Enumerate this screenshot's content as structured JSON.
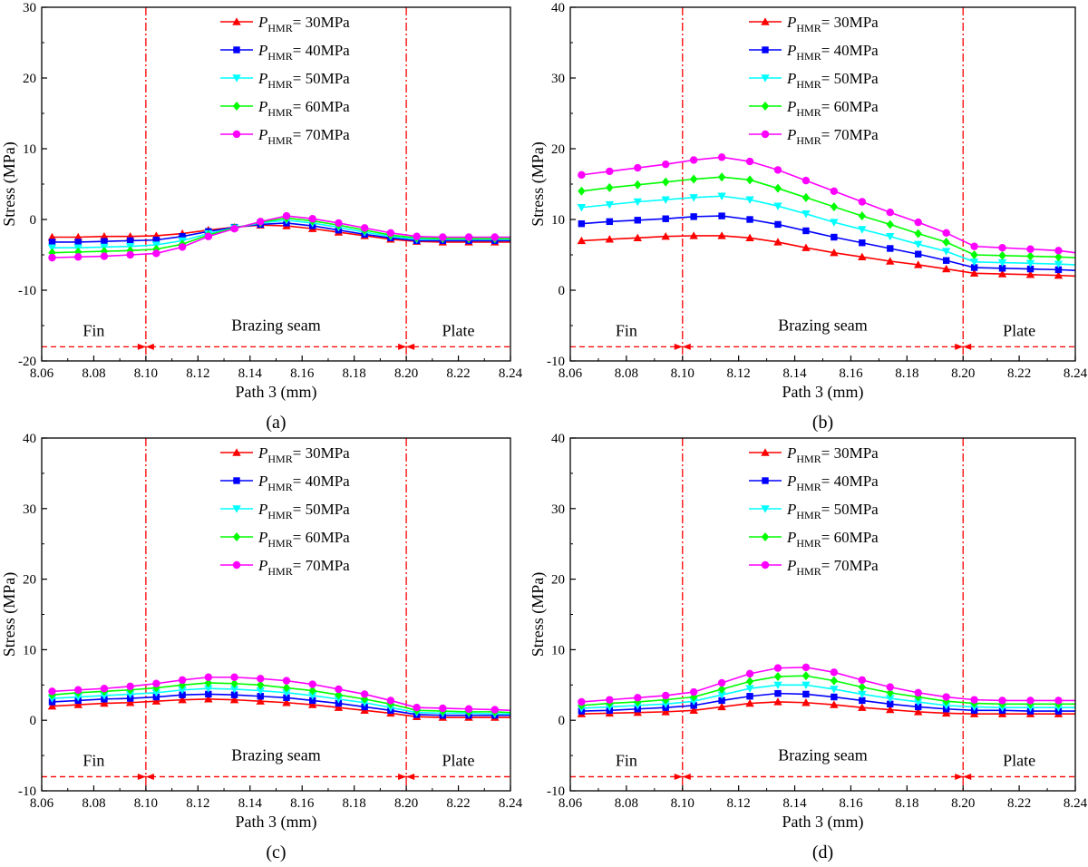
{
  "colors": {
    "p30": "#ff0000",
    "p40": "#0000ff",
    "p50": "#00ffff",
    "p60": "#00ff00",
    "p70": "#ff00ff",
    "boundary": "#ff0000",
    "axis": "#000000"
  },
  "legend_entries": [
    {
      "p": "P",
      "sub": "HMR",
      "val": "= 30MPa"
    },
    {
      "p": "P",
      "sub": "HMR",
      "val": "= 40MPa"
    },
    {
      "p": "P",
      "sub": "HMR",
      "val": "= 50MPa"
    },
    {
      "p": "P",
      "sub": "HMR",
      "val": "= 60MPa"
    },
    {
      "p": "P",
      "sub": "HMR",
      "val": "= 70MPa"
    }
  ],
  "chart_data": [
    {
      "type": "line",
      "panel_label": "(a)",
      "xlabel": "Path 3 (mm)",
      "ylabel": "Stress (MPa)",
      "xlim": [
        8.06,
        8.24
      ],
      "ylim": [
        -20,
        30
      ],
      "xticks": [
        "8.06",
        "8.08",
        "8.10",
        "8.12",
        "8.14",
        "8.16",
        "8.18",
        "8.20",
        "8.22",
        "8.24"
      ],
      "yticks": [
        "-20",
        "-10",
        "0",
        "10",
        "20",
        "30"
      ],
      "boundaries": [
        8.1,
        8.2
      ],
      "region_labels": [
        "Fin",
        "Brazing seam",
        "Plate"
      ],
      "region_arrow_y": -18,
      "x": [
        8.064,
        8.074,
        8.084,
        8.094,
        8.104,
        8.114,
        8.124,
        8.134,
        8.144,
        8.154,
        8.164,
        8.174,
        8.184,
        8.194,
        8.204,
        8.214,
        8.224,
        8.234,
        8.24
      ],
      "series": [
        {
          "name": "P_HMR = 30MPa",
          "marker": "triangle-up",
          "values": [
            -2.5,
            -2.5,
            -2.4,
            -2.4,
            -2.3,
            -2.0,
            -1.5,
            -1.1,
            -0.8,
            -0.9,
            -1.3,
            -1.8,
            -2.3,
            -2.8,
            -3.1,
            -3.2,
            -3.2,
            -3.2,
            -3.2
          ]
        },
        {
          "name": "P_HMR = 40MPa",
          "marker": "square",
          "values": [
            -3.2,
            -3.2,
            -3.1,
            -3.0,
            -2.9,
            -2.4,
            -1.7,
            -1.1,
            -0.7,
            -0.5,
            -0.9,
            -1.5,
            -2.1,
            -2.6,
            -3.0,
            -3.0,
            -3.0,
            -3.0,
            -3.0
          ]
        },
        {
          "name": "P_HMR = 50MPa",
          "marker": "triangle-down",
          "values": [
            -4.0,
            -4.0,
            -3.9,
            -3.8,
            -3.6,
            -3.0,
            -2.0,
            -1.2,
            -0.5,
            -0.1,
            -0.5,
            -1.1,
            -1.8,
            -2.4,
            -2.8,
            -2.8,
            -2.8,
            -2.8,
            -2.8
          ]
        },
        {
          "name": "P_HMR = 60MPa",
          "marker": "diamond",
          "values": [
            -4.7,
            -4.6,
            -4.5,
            -4.4,
            -4.2,
            -3.5,
            -2.2,
            -1.2,
            -0.4,
            0.2,
            -0.2,
            -0.8,
            -1.5,
            -2.2,
            -2.6,
            -2.7,
            -2.7,
            -2.7,
            -2.7
          ]
        },
        {
          "name": "P_HMR = 70MPa",
          "marker": "circle",
          "values": [
            -5.4,
            -5.3,
            -5.2,
            -5.0,
            -4.8,
            -3.9,
            -2.4,
            -1.3,
            -0.3,
            0.5,
            0.1,
            -0.5,
            -1.2,
            -1.9,
            -2.4,
            -2.5,
            -2.5,
            -2.5,
            -2.5
          ]
        }
      ]
    },
    {
      "type": "line",
      "panel_label": "(b)",
      "xlabel": "Path 3 (mm)",
      "ylabel": "Stress (MPa)",
      "xlim": [
        8.06,
        8.24
      ],
      "ylim": [
        -10,
        40
      ],
      "xticks": [
        "8.06",
        "8.08",
        "8.10",
        "8.12",
        "8.14",
        "8.16",
        "8.18",
        "8.20",
        "8.22",
        "8.24"
      ],
      "yticks": [
        "-10",
        "0",
        "10",
        "20",
        "30",
        "40"
      ],
      "boundaries": [
        8.1,
        8.2
      ],
      "region_labels": [
        "Fin",
        "Brazing seam",
        "Plate"
      ],
      "region_arrow_y": -8,
      "x": [
        8.064,
        8.074,
        8.084,
        8.094,
        8.104,
        8.114,
        8.124,
        8.134,
        8.144,
        8.154,
        8.164,
        8.174,
        8.184,
        8.194,
        8.204,
        8.214,
        8.224,
        8.234,
        8.24
      ],
      "series": [
        {
          "name": "P_HMR = 30MPa",
          "marker": "triangle-up",
          "values": [
            7.0,
            7.2,
            7.4,
            7.6,
            7.7,
            7.7,
            7.4,
            6.8,
            6.0,
            5.3,
            4.7,
            4.1,
            3.6,
            3.0,
            2.4,
            2.3,
            2.2,
            2.1,
            2.0
          ]
        },
        {
          "name": "P_HMR = 40MPa",
          "marker": "square",
          "values": [
            9.4,
            9.7,
            9.9,
            10.1,
            10.4,
            10.5,
            10.0,
            9.3,
            8.4,
            7.5,
            6.7,
            5.9,
            5.1,
            4.2,
            3.2,
            3.1,
            3.0,
            2.9,
            2.8
          ]
        },
        {
          "name": "P_HMR = 50MPa",
          "marker": "triangle-down",
          "values": [
            11.7,
            12.1,
            12.5,
            12.8,
            13.1,
            13.3,
            12.8,
            11.9,
            10.8,
            9.6,
            8.6,
            7.6,
            6.5,
            5.5,
            4.0,
            3.9,
            3.8,
            3.7,
            3.6
          ]
        },
        {
          "name": "P_HMR = 60MPa",
          "marker": "diamond",
          "values": [
            14.0,
            14.5,
            14.9,
            15.3,
            15.7,
            16.0,
            15.6,
            14.4,
            13.1,
            11.8,
            10.5,
            9.3,
            8.0,
            6.8,
            5.0,
            4.9,
            4.8,
            4.7,
            4.6
          ]
        },
        {
          "name": "P_HMR = 70MPa",
          "marker": "circle",
          "values": [
            16.3,
            16.8,
            17.3,
            17.8,
            18.4,
            18.8,
            18.2,
            17.0,
            15.5,
            14.0,
            12.5,
            11.0,
            9.6,
            8.1,
            6.2,
            6.0,
            5.8,
            5.6,
            5.3
          ]
        }
      ]
    },
    {
      "type": "line",
      "panel_label": "(c)",
      "xlabel": "Path 3 (mm)",
      "ylabel": "Stress (MPa)",
      "xlim": [
        8.06,
        8.24
      ],
      "ylim": [
        -10,
        40
      ],
      "xticks": [
        "8.06",
        "8.08",
        "8.10",
        "8.12",
        "8.14",
        "8.16",
        "8.18",
        "8.20",
        "8.22",
        "8.24"
      ],
      "yticks": [
        "-10",
        "0",
        "10",
        "20",
        "30",
        "40"
      ],
      "boundaries": [
        8.1,
        8.2
      ],
      "region_labels": [
        "Fin",
        "Brazing seam",
        "Plate"
      ],
      "region_arrow_y": -8,
      "x": [
        8.064,
        8.074,
        8.084,
        8.094,
        8.104,
        8.114,
        8.124,
        8.134,
        8.144,
        8.154,
        8.164,
        8.174,
        8.184,
        8.194,
        8.204,
        8.214,
        8.224,
        8.234,
        8.24
      ],
      "series": [
        {
          "name": "P_HMR = 30MPa",
          "marker": "triangle-up",
          "values": [
            2.0,
            2.2,
            2.4,
            2.5,
            2.7,
            2.9,
            3.0,
            2.9,
            2.7,
            2.5,
            2.2,
            1.8,
            1.4,
            1.0,
            0.5,
            0.4,
            0.4,
            0.4,
            0.4
          ]
        },
        {
          "name": "P_HMR = 40MPa",
          "marker": "square",
          "values": [
            2.6,
            2.8,
            3.0,
            3.1,
            3.3,
            3.6,
            3.7,
            3.6,
            3.4,
            3.2,
            2.8,
            2.4,
            1.9,
            1.4,
            0.8,
            0.7,
            0.7,
            0.7,
            0.7
          ]
        },
        {
          "name": "P_HMR = 50MPa",
          "marker": "triangle-down",
          "values": [
            3.1,
            3.3,
            3.5,
            3.7,
            3.9,
            4.3,
            4.5,
            4.4,
            4.2,
            3.9,
            3.5,
            3.0,
            2.5,
            1.8,
            1.1,
            1.0,
            1.0,
            0.9,
            0.9
          ]
        },
        {
          "name": "P_HMR = 60MPa",
          "marker": "diamond",
          "values": [
            3.6,
            3.9,
            4.1,
            4.3,
            4.6,
            5.0,
            5.3,
            5.2,
            5.0,
            4.6,
            4.2,
            3.6,
            3.0,
            2.3,
            1.4,
            1.3,
            1.2,
            1.2,
            1.1
          ]
        },
        {
          "name": "P_HMR = 70MPa",
          "marker": "circle",
          "values": [
            4.1,
            4.3,
            4.5,
            4.8,
            5.2,
            5.7,
            6.1,
            6.1,
            5.9,
            5.6,
            5.1,
            4.4,
            3.7,
            2.8,
            1.8,
            1.7,
            1.6,
            1.5,
            1.4
          ]
        }
      ]
    },
    {
      "type": "line",
      "panel_label": "(d)",
      "xlabel": "Path 3 (mm)",
      "ylabel": "Stress (MPa)",
      "xlim": [
        8.06,
        8.24
      ],
      "ylim": [
        -10,
        40
      ],
      "xticks": [
        "8.06",
        "8.08",
        "8.10",
        "8.12",
        "8.14",
        "8.16",
        "8.18",
        "8.20",
        "8.22",
        "8.24"
      ],
      "yticks": [
        "-10",
        "0",
        "10",
        "20",
        "30",
        "40"
      ],
      "boundaries": [
        8.1,
        8.2
      ],
      "region_labels": [
        "Fin",
        "Brazing seam",
        "Plate"
      ],
      "region_arrow_y": -8,
      "x": [
        8.064,
        8.074,
        8.084,
        8.094,
        8.104,
        8.114,
        8.124,
        8.134,
        8.144,
        8.154,
        8.164,
        8.174,
        8.184,
        8.194,
        8.204,
        8.214,
        8.224,
        8.234,
        8.24
      ],
      "series": [
        {
          "name": "P_HMR = 30MPa",
          "marker": "triangle-up",
          "values": [
            0.9,
            1.0,
            1.1,
            1.2,
            1.4,
            1.9,
            2.4,
            2.6,
            2.5,
            2.2,
            1.8,
            1.5,
            1.2,
            1.0,
            0.9,
            0.9,
            0.9,
            0.9,
            0.9
          ]
        },
        {
          "name": "P_HMR = 40MPa",
          "marker": "square",
          "values": [
            1.3,
            1.4,
            1.6,
            1.8,
            2.1,
            2.8,
            3.4,
            3.8,
            3.7,
            3.3,
            2.8,
            2.3,
            1.9,
            1.6,
            1.4,
            1.4,
            1.3,
            1.3,
            1.3
          ]
        },
        {
          "name": "P_HMR = 50MPa",
          "marker": "triangle-down",
          "values": [
            1.7,
            1.9,
            2.1,
            2.3,
            2.7,
            3.6,
            4.5,
            5.0,
            5.0,
            4.4,
            3.7,
            3.1,
            2.6,
            2.1,
            1.9,
            1.8,
            1.8,
            1.8,
            1.8
          ]
        },
        {
          "name": "P_HMR = 60MPa",
          "marker": "diamond",
          "values": [
            2.1,
            2.4,
            2.6,
            2.9,
            3.3,
            4.4,
            5.5,
            6.2,
            6.3,
            5.6,
            4.7,
            3.9,
            3.3,
            2.7,
            2.4,
            2.3,
            2.3,
            2.3,
            2.3
          ]
        },
        {
          "name": "P_HMR = 70MPa",
          "marker": "circle",
          "values": [
            2.6,
            2.9,
            3.2,
            3.5,
            4.0,
            5.3,
            6.6,
            7.4,
            7.5,
            6.8,
            5.7,
            4.7,
            3.9,
            3.3,
            2.9,
            2.8,
            2.8,
            2.8,
            2.8
          ]
        }
      ]
    }
  ]
}
